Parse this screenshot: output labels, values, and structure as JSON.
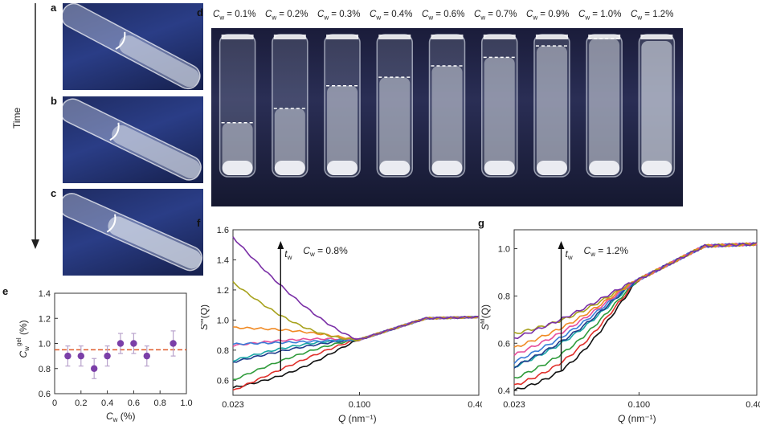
{
  "panels": {
    "a": "a",
    "b": "b",
    "c": "c",
    "d": "d",
    "e": "e",
    "f": "f",
    "g": "g"
  },
  "time_label": "Time",
  "panel_d": {
    "concentrations": [
      "C_w = 0.1%",
      "C_w = 0.2%",
      "C_w = 0.3%",
      "C_w = 0.4%",
      "C_w = 0.6%",
      "C_w = 0.7%",
      "C_w = 0.9%",
      "C_w = 1.0%",
      "C_w = 1.2%"
    ],
    "cw_values": [
      "0.1%",
      "0.2%",
      "0.3%",
      "0.4%",
      "0.6%",
      "0.7%",
      "0.9%",
      "1.0%",
      "1.2%"
    ],
    "gel_level_fraction": [
      0.62,
      0.52,
      0.36,
      0.3,
      0.22,
      0.16,
      0.08,
      0.03,
      null
    ]
  },
  "chart_data": [
    {
      "id": "e",
      "type": "scatter",
      "xlabel": "C_w (%)",
      "ylabel": "C_w^gel (%)",
      "xlim": [
        0,
        1.0
      ],
      "ylim": [
        0.6,
        1.4
      ],
      "xticks": [
        "0",
        "0.2",
        "0.4",
        "0.6",
        "0.8",
        "1.0"
      ],
      "yticks": [
        "0.6",
        "0.8",
        "1.0",
        "1.2",
        "1.4"
      ],
      "points": [
        {
          "x": 0.1,
          "y": 0.9,
          "err": 0.08
        },
        {
          "x": 0.2,
          "y": 0.9,
          "err": 0.08
        },
        {
          "x": 0.3,
          "y": 0.8,
          "err": 0.08
        },
        {
          "x": 0.4,
          "y": 0.9,
          "err": 0.08
        },
        {
          "x": 0.5,
          "y": 1.0,
          "err": 0.08
        },
        {
          "x": 0.6,
          "y": 1.0,
          "err": 0.08
        },
        {
          "x": 0.7,
          "y": 0.9,
          "err": 0.08
        },
        {
          "x": 0.9,
          "y": 1.0,
          "err": 0.1
        }
      ],
      "reference_line": 0.95,
      "point_color": "#7b3fa8",
      "line_color": "#e05a2a"
    },
    {
      "id": "f",
      "type": "line",
      "annotation": "C_w = 0.8%",
      "arrow_label": "t_w",
      "xlabel": "Q (nm⁻¹)",
      "ylabel": "S^M(Q)",
      "xlim": [
        0.023,
        0.4
      ],
      "ylim": [
        0.5,
        1.6
      ],
      "xticks": [
        "0.023",
        "0.100",
        "0.400"
      ],
      "yticks": [
        "0.6",
        "0.8",
        "1.0",
        "1.2",
        "1.4",
        "1.6"
      ],
      "series": [
        {
          "name": "black",
          "color": "#111111",
          "start": 0.55,
          "mid": 0.62
        },
        {
          "name": "red",
          "color": "#e0302b",
          "start": 0.53,
          "mid": 0.68
        },
        {
          "name": "green",
          "color": "#2e9b3a",
          "start": 0.6,
          "mid": 0.74
        },
        {
          "name": "navy",
          "color": "#1f3d8c",
          "start": 0.72,
          "mid": 0.8
        },
        {
          "name": "teal",
          "color": "#1aa6a6",
          "start": 0.73,
          "mid": 0.82
        },
        {
          "name": "pink",
          "color": "#e64d9a",
          "start": 0.83,
          "mid": 0.87
        },
        {
          "name": "blue",
          "color": "#3b7dd8",
          "start": 0.84,
          "mid": 0.85
        },
        {
          "name": "orange",
          "color": "#f08a24",
          "start": 0.95,
          "mid": 0.94
        },
        {
          "name": "olive",
          "color": "#a7a21d",
          "start": 1.25,
          "mid": 1.0
        },
        {
          "name": "purple",
          "color": "#7a2fa6",
          "start": 1.55,
          "mid": 1.2
        }
      ]
    },
    {
      "id": "g",
      "type": "line",
      "annotation": "C_w = 1.2%",
      "arrow_label": "t_w",
      "xlabel": "Q (nm⁻¹)",
      "ylabel": "S^M(Q)",
      "xlim": [
        0.023,
        0.4
      ],
      "ylim": [
        0.38,
        1.08
      ],
      "xticks": [
        "0.023",
        "0.100",
        "0.400"
      ],
      "yticks": [
        "0.4",
        "0.6",
        "0.8",
        "1.0"
      ],
      "series": [
        {
          "name": "black",
          "color": "#111111",
          "start": 0.4,
          "mid": 0.46
        },
        {
          "name": "red",
          "color": "#e0302b",
          "start": 0.42,
          "mid": 0.5
        },
        {
          "name": "green",
          "color": "#2e9b3a",
          "start": 0.45,
          "mid": 0.54
        },
        {
          "name": "teal",
          "color": "#1aa6a6",
          "start": 0.5,
          "mid": 0.59
        },
        {
          "name": "navy",
          "color": "#1f3d8c",
          "start": 0.5,
          "mid": 0.6
        },
        {
          "name": "blue",
          "color": "#3b7dd8",
          "start": 0.52,
          "mid": 0.62
        },
        {
          "name": "pink",
          "color": "#e64d9a",
          "start": 0.55,
          "mid": 0.64
        },
        {
          "name": "orange",
          "color": "#f08a24",
          "start": 0.58,
          "mid": 0.66
        },
        {
          "name": "olive",
          "color": "#a7a21d",
          "start": 0.64,
          "mid": 0.69
        },
        {
          "name": "purple",
          "color": "#7a2fa6",
          "start": 0.62,
          "mid": 0.7
        }
      ]
    }
  ]
}
